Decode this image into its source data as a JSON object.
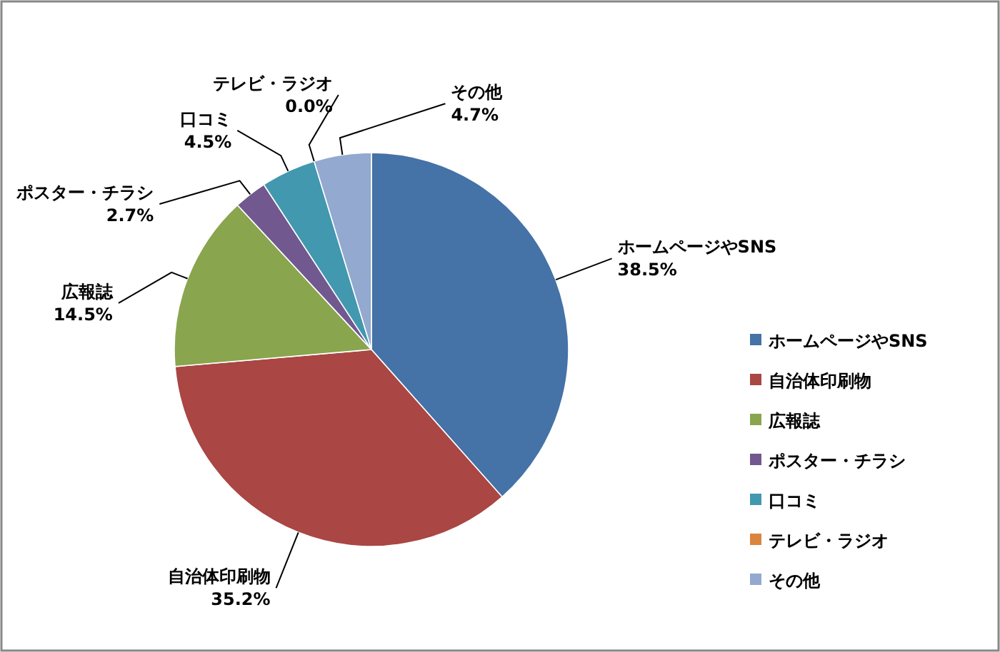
{
  "chart_data": {
    "type": "pie",
    "categories": [
      "ホームページやSNS",
      "自治体印刷物",
      "広報誌",
      "ポスター・チラシ",
      "口コミ",
      "テレビ・ラジオ",
      "その他"
    ],
    "values": [
      38.5,
      35.2,
      14.5,
      2.7,
      4.5,
      0.0,
      4.7
    ],
    "colors": [
      "#4572a7",
      "#aa4643",
      "#89a54e",
      "#71588f",
      "#4198af",
      "#db843d",
      "#93a9cf"
    ],
    "value_labels": [
      "38.5%",
      "35.2%",
      "14.5%",
      "2.7%",
      "4.5%",
      "0.0%",
      "4.7%"
    ],
    "legend": "right"
  }
}
